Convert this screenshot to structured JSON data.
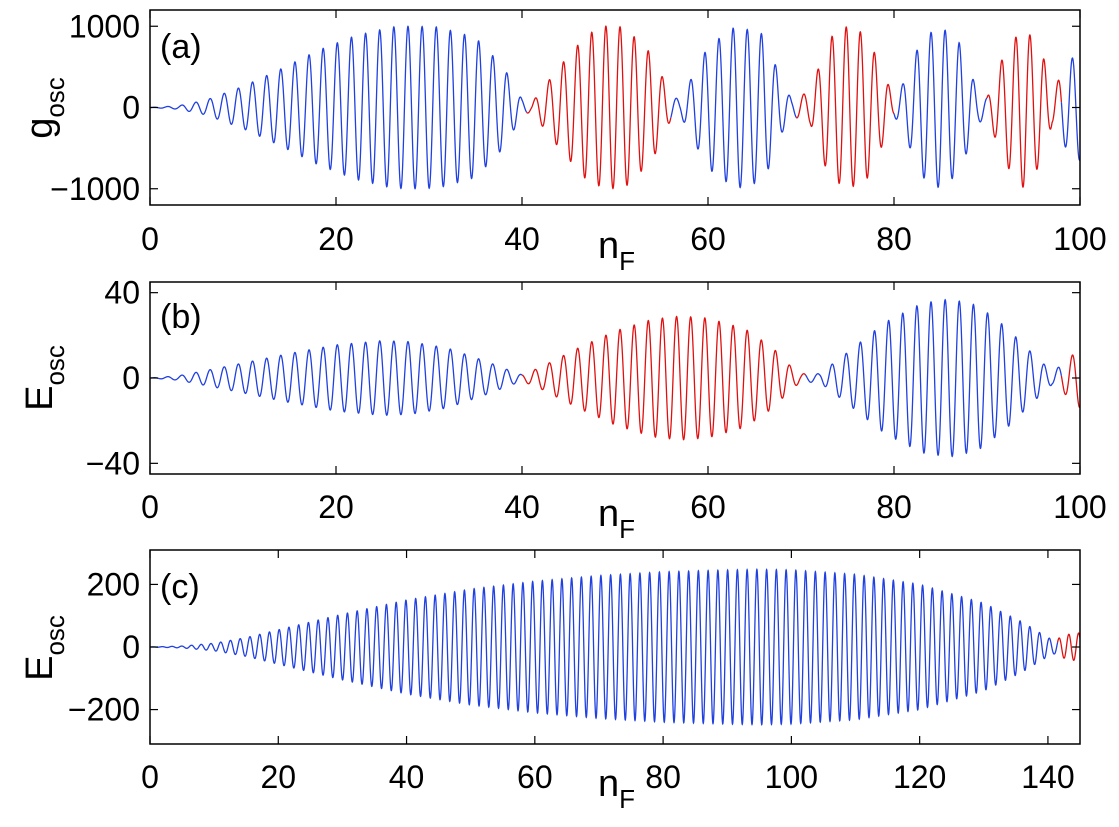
{
  "colors": {
    "blue": "#2040e0",
    "red": "#e01010",
    "axis": "#000000"
  },
  "chart_data": [
    {
      "type": "line",
      "panel_label": "(a)",
      "xlabel_main": "n",
      "xlabel_sub": "F",
      "ylabel_main": "g",
      "ylabel_sub": "osc",
      "xlim": [
        0,
        100
      ],
      "ylim": [
        -1200,
        1200
      ],
      "xticks": [
        0,
        20,
        40,
        60,
        80,
        100
      ],
      "xtick_labels": [
        "0",
        "20",
        "40",
        "60",
        "80",
        "100"
      ],
      "yticks": [
        -1000,
        0,
        1000
      ],
      "ytick_labels": [
        "−1000",
        "0",
        "1000"
      ],
      "period": 1.52,
      "envelope": [
        [
          0,
          0
        ],
        [
          3,
          20
        ],
        [
          6,
          90
        ],
        [
          10,
          260
        ],
        [
          14,
          470
        ],
        [
          18,
          700
        ],
        [
          22,
          880
        ],
        [
          26,
          990
        ],
        [
          28,
          1000
        ],
        [
          31,
          990
        ],
        [
          35,
          860
        ],
        [
          38,
          500
        ],
        [
          40,
          100
        ],
        [
          41,
          50
        ],
        [
          44,
          500
        ],
        [
          47,
          900
        ],
        [
          49,
          1000
        ],
        [
          51,
          990
        ],
        [
          54,
          650
        ],
        [
          56,
          150
        ],
        [
          57,
          90
        ],
        [
          60,
          750
        ],
        [
          63,
          1000
        ],
        [
          66,
          900
        ],
        [
          68,
          300
        ],
        [
          69,
          100
        ],
        [
          71,
          200
        ],
        [
          73,
          850
        ],
        [
          75,
          1000
        ],
        [
          77,
          900
        ],
        [
          79,
          400
        ],
        [
          80,
          100
        ],
        [
          81,
          300
        ],
        [
          83,
          850
        ],
        [
          85,
          1000
        ],
        [
          87,
          800
        ],
        [
          89,
          200
        ],
        [
          90,
          120
        ],
        [
          92,
          700
        ],
        [
          94,
          1000
        ],
        [
          96,
          650
        ],
        [
          97,
          200
        ],
        [
          99,
          600
        ],
        [
          100,
          650
        ]
      ],
      "segments": [
        {
          "x0": 0,
          "x1": 40.5,
          "color": "blue"
        },
        {
          "x0": 40.5,
          "x1": 56,
          "color": "red"
        },
        {
          "x0": 56,
          "x1": 69.5,
          "color": "blue"
        },
        {
          "x0": 69.5,
          "x1": 80,
          "color": "red"
        },
        {
          "x0": 80,
          "x1": 90,
          "color": "blue"
        },
        {
          "x0": 90,
          "x1": 98,
          "color": "red"
        },
        {
          "x0": 98,
          "x1": 100,
          "color": "blue"
        }
      ]
    },
    {
      "type": "line",
      "panel_label": "(b)",
      "xlabel_main": "n",
      "xlabel_sub": "F",
      "ylabel_main": "E",
      "ylabel_sub": "osc",
      "xlim": [
        0,
        100
      ],
      "ylim": [
        -45,
        45
      ],
      "xticks": [
        0,
        20,
        40,
        60,
        80,
        100
      ],
      "xtick_labels": [
        "0",
        "20",
        "40",
        "60",
        "80",
        "100"
      ],
      "yticks": [
        -40,
        0,
        40
      ],
      "ytick_labels": [
        "−40",
        "0",
        "40"
      ],
      "period": 1.52,
      "envelope": [
        [
          0,
          0
        ],
        [
          3,
          1
        ],
        [
          6,
          3.5
        ],
        [
          10,
          7
        ],
        [
          15,
          11.5
        ],
        [
          20,
          15.5
        ],
        [
          25,
          17.5
        ],
        [
          28,
          17
        ],
        [
          32,
          14
        ],
        [
          36,
          8
        ],
        [
          39,
          3
        ],
        [
          40,
          1.5
        ],
        [
          42,
          5
        ],
        [
          46,
          14
        ],
        [
          50,
          22
        ],
        [
          54,
          27.5
        ],
        [
          57,
          29
        ],
        [
          60,
          28
        ],
        [
          64,
          23
        ],
        [
          67,
          14
        ],
        [
          69,
          5
        ],
        [
          70,
          2
        ],
        [
          72,
          2
        ],
        [
          75,
          12
        ],
        [
          79,
          26
        ],
        [
          83,
          35
        ],
        [
          86,
          37
        ],
        [
          89,
          34
        ],
        [
          92,
          24
        ],
        [
          95,
          11
        ],
        [
          97,
          3
        ],
        [
          98,
          6
        ],
        [
          100,
          14
        ]
      ],
      "segments": [
        {
          "x0": 0,
          "x1": 40,
          "color": "blue"
        },
        {
          "x0": 40,
          "x1": 70.5,
          "color": "red"
        },
        {
          "x0": 70.5,
          "x1": 98,
          "color": "blue"
        },
        {
          "x0": 98,
          "x1": 100,
          "color": "red"
        }
      ]
    },
    {
      "type": "line",
      "panel_label": "(c)",
      "xlabel_main": "n",
      "xlabel_sub": "F",
      "ylabel_main": "E",
      "ylabel_sub": "osc",
      "xlim": [
        0,
        145
      ],
      "ylim": [
        -310,
        310
      ],
      "xticks": [
        0,
        20,
        40,
        60,
        80,
        100,
        120,
        140
      ],
      "xtick_labels": [
        "0",
        "20",
        "40",
        "60",
        "80",
        "100",
        "120",
        "140"
      ],
      "yticks": [
        -200,
        0,
        200
      ],
      "ytick_labels": [
        "−200",
        "0",
        "200"
      ],
      "period": 1.52,
      "envelope": [
        [
          0,
          0
        ],
        [
          5,
          3
        ],
        [
          10,
          12
        ],
        [
          15,
          30
        ],
        [
          20,
          55
        ],
        [
          30,
          105
        ],
        [
          40,
          150
        ],
        [
          50,
          185
        ],
        [
          60,
          210
        ],
        [
          70,
          228
        ],
        [
          80,
          240
        ],
        [
          90,
          246
        ],
        [
          95,
          248
        ],
        [
          100,
          246
        ],
        [
          110,
          232
        ],
        [
          120,
          200
        ],
        [
          130,
          140
        ],
        [
          136,
          80
        ],
        [
          140,
          30
        ],
        [
          141,
          22
        ],
        [
          143,
          40
        ],
        [
          145,
          45
        ]
      ],
      "segments": [
        {
          "x0": 0,
          "x1": 141.5,
          "color": "blue"
        },
        {
          "x0": 141.5,
          "x1": 145,
          "color": "red"
        }
      ]
    }
  ]
}
